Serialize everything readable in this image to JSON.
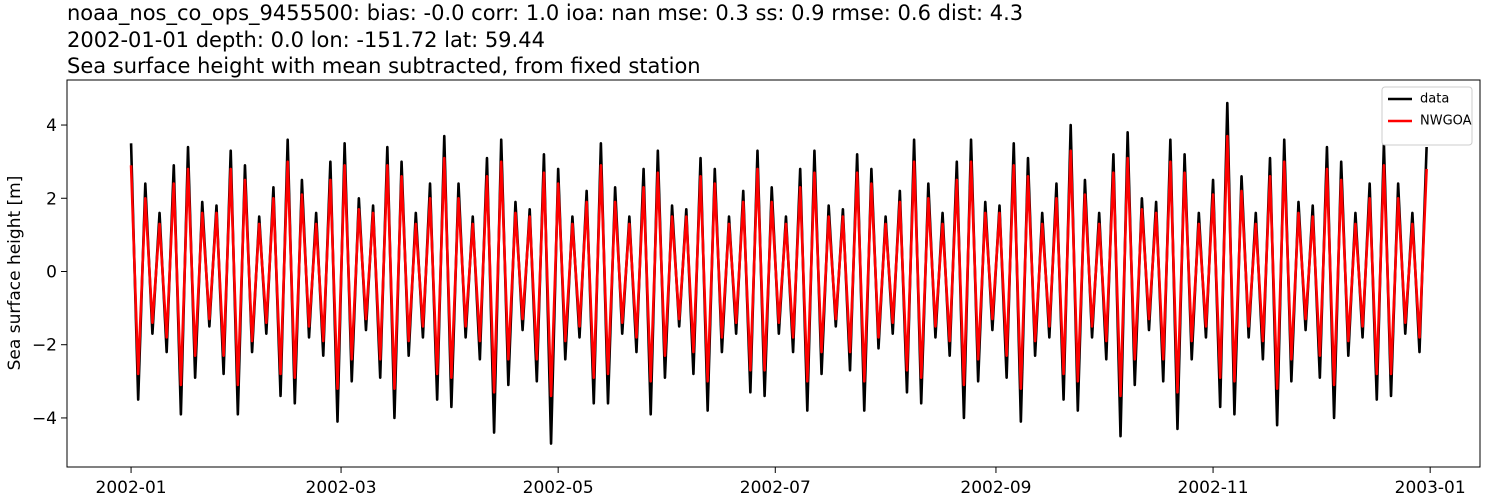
{
  "chart_data": {
    "type": "line",
    "title_lines": [
      "noaa_nos_co_ops_9455500: bias: -0.0  corr: 1.0  ioa: nan  mse: 0.3  ss: 0.9  rmse: 0.6  dist: 4.3",
      "2002-01-01 depth: 0.0 lon: -151.72 lat: 59.44",
      "Sea surface height with mean subtracted, from fixed station"
    ],
    "ylabel": "Sea surface height [m]",
    "x": [
      0,
      2,
      4,
      6,
      8,
      10,
      12,
      14,
      16,
      18,
      20,
      22,
      24,
      26,
      28,
      30,
      32,
      34,
      36,
      38,
      40,
      42,
      44,
      46,
      48,
      50,
      52,
      54,
      56,
      58,
      60,
      62,
      64,
      66,
      68,
      70,
      72,
      74,
      76,
      78,
      80,
      82,
      84,
      86,
      88,
      90,
      92,
      94,
      96,
      98,
      100,
      102,
      104,
      106,
      108,
      110,
      112,
      114,
      116,
      118,
      120,
      122,
      124,
      126,
      128,
      130,
      132,
      134,
      136,
      138,
      140,
      142,
      144,
      146,
      148,
      150,
      152,
      154,
      156,
      158,
      160,
      162,
      164,
      166,
      168,
      170,
      172,
      174,
      176,
      178,
      180,
      182,
      184,
      186,
      188,
      190,
      192,
      194,
      196,
      198,
      200,
      202,
      204,
      206,
      208,
      210,
      212,
      214,
      216,
      218,
      220,
      222,
      224,
      226,
      228,
      230,
      232,
      234,
      236,
      238,
      240,
      242,
      244,
      246,
      248,
      250,
      252,
      254,
      256,
      258,
      260,
      262,
      264,
      266,
      268,
      270,
      272,
      274,
      276,
      278,
      280,
      282,
      284,
      286,
      288,
      290,
      292,
      294,
      296,
      298,
      300,
      302,
      304,
      306,
      308,
      310,
      312,
      314,
      316,
      318,
      320,
      322,
      324,
      326,
      328,
      330,
      332,
      334,
      336,
      338,
      340,
      342,
      344,
      346,
      348,
      350,
      352,
      354,
      356,
      358,
      360,
      362,
      364
    ],
    "series": [
      {
        "name": "data",
        "color": "#000000",
        "values": [
          3.5,
          -3.5,
          2.4,
          -1.7,
          1.6,
          -2.2,
          2.9,
          -3.9,
          3.4,
          -2.9,
          1.9,
          -1.5,
          1.8,
          -2.8,
          3.3,
          -3.9,
          2.9,
          -2.2,
          1.5,
          -1.7,
          2.3,
          -3.4,
          3.6,
          -3.6,
          2.5,
          -1.8,
          1.6,
          -2.3,
          3.0,
          -4.1,
          3.5,
          -3.0,
          2.0,
          -1.6,
          1.8,
          -2.9,
          3.4,
          -4.0,
          3.0,
          -2.3,
          1.6,
          -1.8,
          2.4,
          -3.5,
          3.7,
          -3.7,
          2.4,
          -1.8,
          1.5,
          -2.4,
          3.1,
          -4.4,
          3.6,
          -3.1,
          1.9,
          -1.6,
          1.7,
          -3.0,
          3.2,
          -4.7,
          2.8,
          -2.4,
          1.5,
          -1.8,
          2.2,
          -3.6,
          3.5,
          -3.6,
          2.3,
          -1.7,
          1.5,
          -2.2,
          2.8,
          -3.9,
          3.3,
          -2.9,
          1.8,
          -1.5,
          1.7,
          -2.8,
          3.1,
          -3.8,
          2.8,
          -2.2,
          1.5,
          -1.7,
          2.2,
          -3.3,
          3.3,
          -3.4,
          2.3,
          -1.7,
          1.5,
          -2.2,
          2.8,
          -3.8,
          3.3,
          -2.8,
          1.8,
          -1.5,
          1.7,
          -2.7,
          3.2,
          -3.8,
          2.8,
          -2.1,
          1.5,
          -1.7,
          2.2,
          -3.3,
          3.6,
          -3.6,
          2.4,
          -1.8,
          1.6,
          -2.3,
          3.0,
          -4.0,
          3.6,
          -3.0,
          1.9,
          -1.6,
          1.8,
          -2.9,
          3.5,
          -4.1,
          3.1,
          -2.3,
          1.6,
          -1.8,
          2.4,
          -3.5,
          4.0,
          -3.8,
          2.5,
          -1.8,
          1.6,
          -2.4,
          3.2,
          -4.5,
          3.8,
          -3.1,
          2.0,
          -1.6,
          1.9,
          -3.0,
          3.6,
          -4.3,
          3.2,
          -2.4,
          1.6,
          -1.8,
          2.5,
          -3.7,
          4.6,
          -3.9,
          2.6,
          -1.8,
          1.6,
          -2.4,
          3.1,
          -4.2,
          3.6,
          -3.0,
          1.9,
          -1.6,
          1.8,
          -2.9,
          3.4,
          -4.0,
          3.0,
          -2.3,
          1.6,
          -1.8,
          2.4,
          -3.5,
          3.5,
          -3.4,
          2.4,
          -1.7,
          1.6,
          -2.2,
          3.4
        ]
      },
      {
        "name": "NWGOA",
        "color": "#ff0000",
        "values": [
          2.9,
          -2.8,
          2.0,
          -1.4,
          1.3,
          -1.8,
          2.4,
          -3.1,
          2.8,
          -2.3,
          1.6,
          -1.3,
          1.6,
          -2.3,
          2.8,
          -3.1,
          2.5,
          -1.9,
          1.3,
          -1.4,
          2.0,
          -2.8,
          3.0,
          -2.9,
          2.1,
          -1.5,
          1.3,
          -1.9,
          2.5,
          -3.2,
          2.9,
          -2.4,
          1.7,
          -1.3,
          1.6,
          -2.4,
          2.9,
          -3.2,
          2.6,
          -1.9,
          1.3,
          -1.5,
          2.0,
          -2.8,
          3.1,
          -2.9,
          2.0,
          -1.5,
          1.3,
          -1.9,
          2.6,
          -3.3,
          3.0,
          -2.4,
          1.6,
          -1.3,
          1.5,
          -2.4,
          2.7,
          -3.4,
          2.4,
          -1.9,
          1.3,
          -1.5,
          1.9,
          -2.9,
          2.9,
          -2.8,
          1.9,
          -1.4,
          1.3,
          -1.8,
          2.3,
          -3.0,
          2.7,
          -2.3,
          1.5,
          -1.3,
          1.5,
          -2.2,
          2.6,
          -3.0,
          2.4,
          -1.8,
          1.3,
          -1.4,
          1.9,
          -2.7,
          2.8,
          -2.7,
          1.9,
          -1.4,
          1.3,
          -1.8,
          2.3,
          -3.0,
          2.7,
          -2.2,
          1.5,
          -1.3,
          1.5,
          -2.2,
          2.7,
          -3.0,
          2.4,
          -1.8,
          1.3,
          -1.4,
          1.9,
          -2.7,
          3.0,
          -2.9,
          2.0,
          -1.5,
          1.3,
          -1.9,
          2.5,
          -3.1,
          3.0,
          -2.4,
          1.6,
          -1.3,
          1.6,
          -2.3,
          2.9,
          -3.2,
          2.6,
          -1.9,
          1.3,
          -1.5,
          2.0,
          -2.8,
          3.3,
          -3.0,
          2.1,
          -1.5,
          1.3,
          -1.9,
          2.7,
          -3.4,
          3.1,
          -2.4,
          1.7,
          -1.3,
          1.6,
          -2.4,
          3.0,
          -3.3,
          2.7,
          -1.9,
          1.3,
          -1.5,
          2.1,
          -2.9,
          3.7,
          -3.0,
          2.2,
          -1.5,
          1.3,
          -1.9,
          2.6,
          -3.2,
          3.0,
          -2.4,
          1.6,
          -1.3,
          1.5,
          -2.3,
          2.8,
          -3.1,
          2.5,
          -1.9,
          1.3,
          -1.5,
          2.0,
          -2.8,
          2.9,
          -2.8,
          2.0,
          -1.4,
          1.3,
          -1.8,
          2.8
        ]
      }
    ],
    "xlim": [
      -18,
      379
    ],
    "ylim": [
      -5.34,
      5.23
    ],
    "xticks": [
      {
        "value": 0,
        "label": "2002-01"
      },
      {
        "value": 59,
        "label": "2002-03"
      },
      {
        "value": 120,
        "label": "2002-05"
      },
      {
        "value": 181,
        "label": "2002-07"
      },
      {
        "value": 243,
        "label": "2002-09"
      },
      {
        "value": 304,
        "label": "2002-11"
      },
      {
        "value": 365,
        "label": "2003-01"
      }
    ],
    "yticks": [
      {
        "value": -4,
        "label": "−4"
      },
      {
        "value": -2,
        "label": "−2"
      },
      0,
      2,
      4
    ],
    "grid": false,
    "legend": "upper right"
  }
}
